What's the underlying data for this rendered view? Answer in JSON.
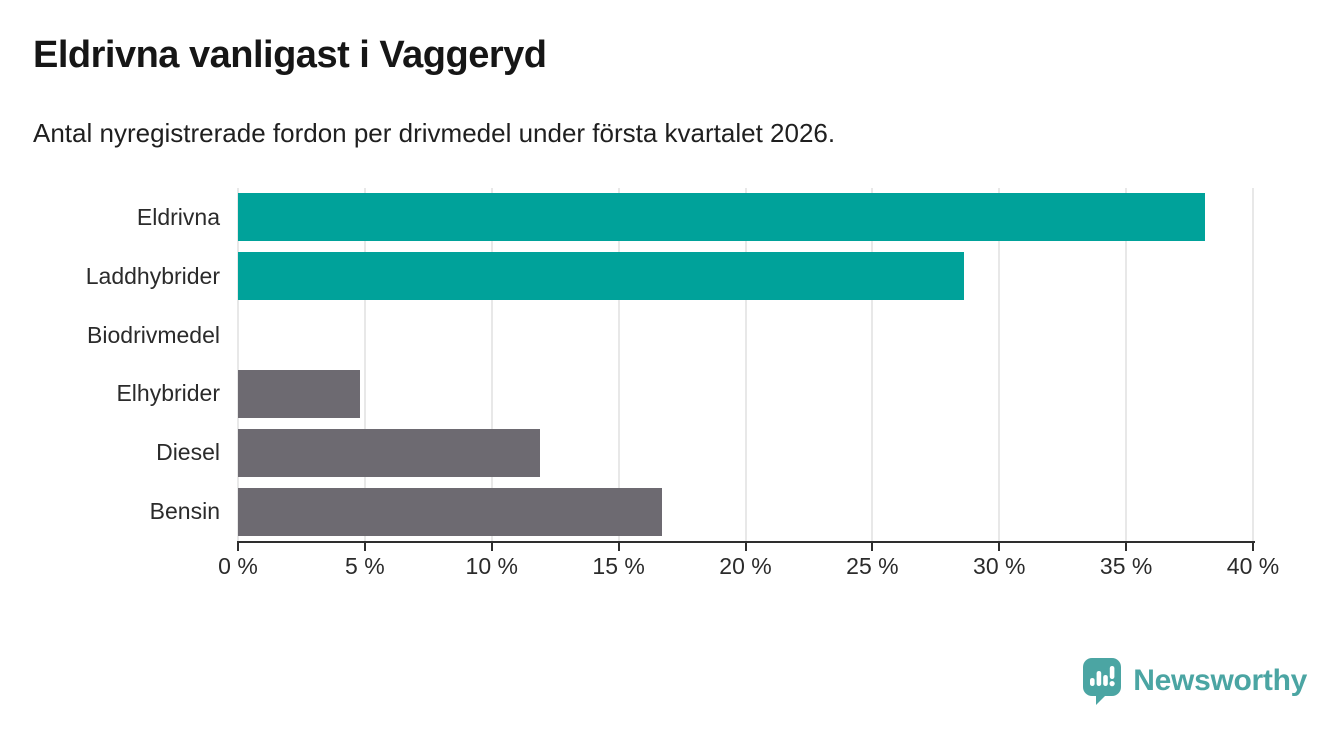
{
  "header": {
    "title": "Eldrivna vanligast i Vaggeryd",
    "subtitle": "Antal nyregistrerade fordon per drivmedel under första kvartalet 2026."
  },
  "chart_data": {
    "type": "bar",
    "orientation": "horizontal",
    "title": "Eldrivna vanligast i Vaggeryd",
    "subtitle": "Antal nyregistrerade fordon per drivmedel under första kvartalet 2026.",
    "categories": [
      "Eldrivna",
      "Laddhybrider",
      "Biodrivmedel",
      "Elhybrider",
      "Diesel",
      "Bensin"
    ],
    "values": [
      38.1,
      28.6,
      0,
      4.8,
      11.9,
      16.7
    ],
    "unit": "%",
    "xlabel": "",
    "ylabel": "",
    "xlim": [
      0,
      40
    ],
    "x_ticks": [
      0,
      5,
      10,
      15,
      20,
      25,
      30,
      35,
      40
    ],
    "x_tick_labels": [
      "0 %",
      "5 %",
      "10 %",
      "15 %",
      "20 %",
      "25 %",
      "30 %",
      "35 %",
      "40 %"
    ],
    "grid": true,
    "legend": false,
    "bar_colors": [
      "#00a29a",
      "#00a29a",
      "#6d6a71",
      "#6d6a71",
      "#6d6a71",
      "#6d6a71"
    ],
    "colors": {
      "highlight": "#00a29a",
      "neutral": "#6d6a71",
      "gridline": "#e8e8e8",
      "axis": "#2e2e2e",
      "text": "#2b2b2b"
    }
  },
  "footer": {
    "brand": "Newsworthy",
    "brand_color": "#4ba5a3",
    "logo_icon": "speech-bubble-bar-chart-icon"
  }
}
